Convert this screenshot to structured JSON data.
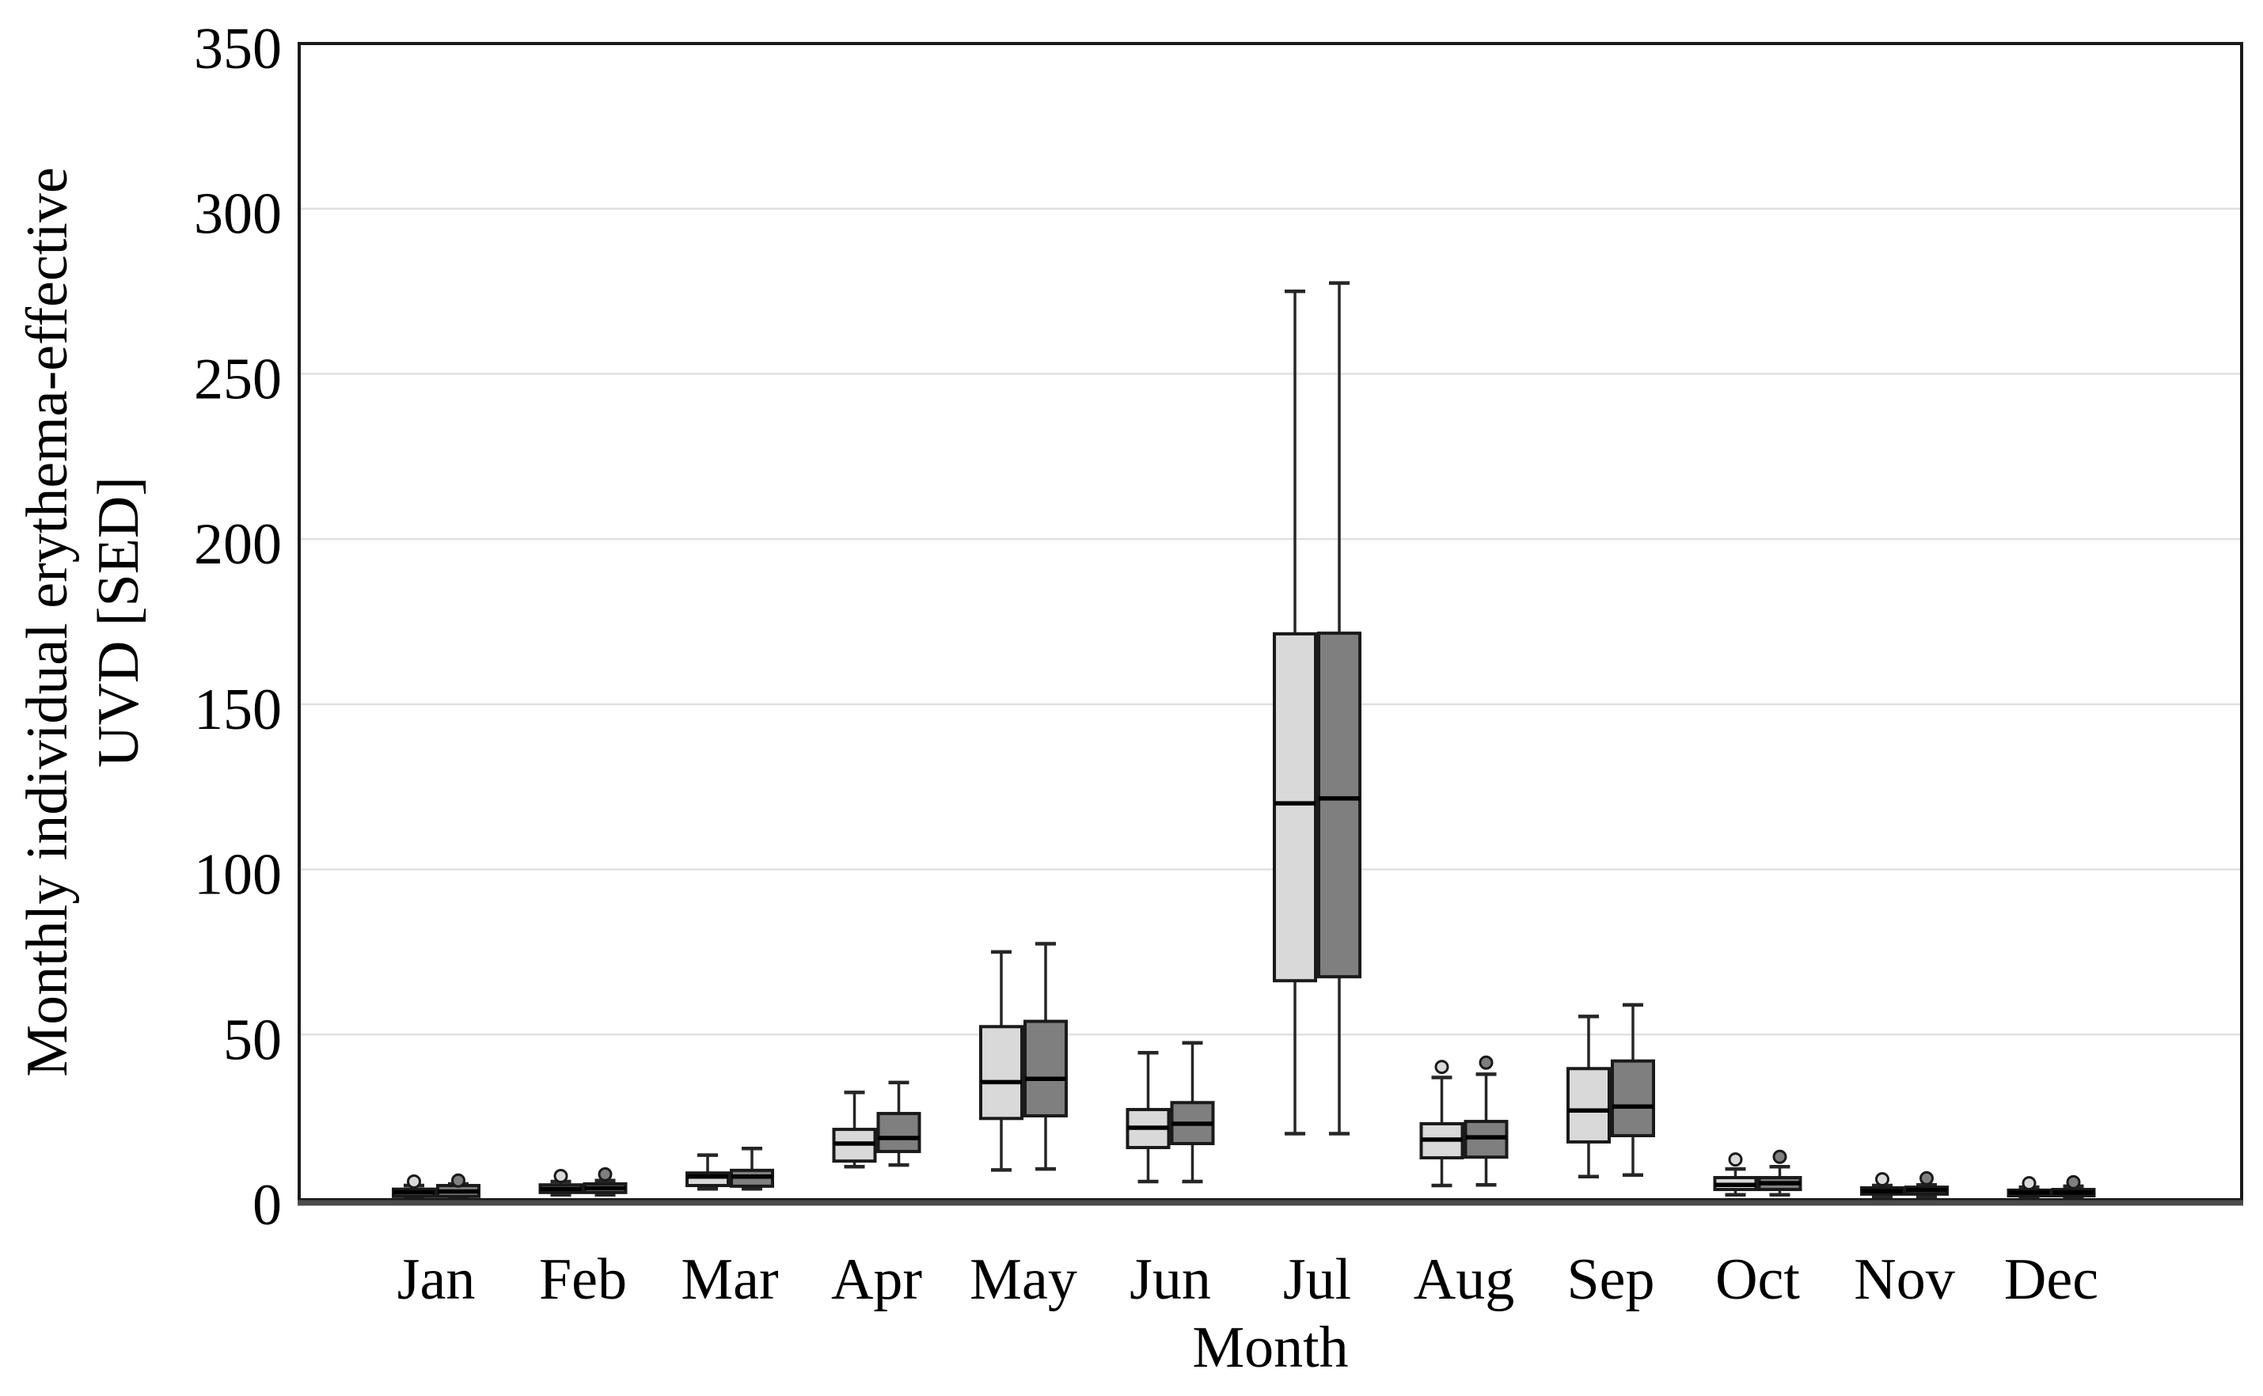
{
  "figure": {
    "background": "#ffffff",
    "description": "Grouped box-and-whisker plot, two unlabeled series per month (light grey and dark grey), no legend, no title"
  },
  "colors": {
    "light_series": "#d9d9d9",
    "dark_series": "#7f7f7f",
    "box_stroke": "#1a1a1a",
    "median_stroke": "#000000",
    "whisker_stroke": "#262626",
    "gridline": "#e0e0e0",
    "frame": "#1a1a1a",
    "x_axis_line": "#4a4a4a",
    "text": "#000000"
  },
  "chart_data": {
    "type": "boxplot",
    "title": "",
    "xlabel": "Month",
    "ylabel": "Monthly individual erythema-effective UVD [SED]",
    "ylabel_lines": [
      "Monthly individual erythema-effective",
      "UVD [SED]"
    ],
    "ylim": [
      0,
      350
    ],
    "y_ticks": [
      0,
      50,
      100,
      150,
      200,
      250,
      300,
      350
    ],
    "grid": "horizontal gridlines at every 50, framed plot area",
    "legend": "none",
    "categories": [
      "Jan",
      "Feb",
      "Mar",
      "Apr",
      "May",
      "Jun",
      "Jul",
      "Aug",
      "Sep",
      "Oct",
      "Nov",
      "Dec"
    ],
    "series": [
      {
        "id": "light",
        "name": "light-grey series",
        "color": "#d9d9d9",
        "boxes": [
          {
            "whislo": 0.5,
            "q1": 1.0,
            "med": 2.2,
            "q3": 3.2,
            "whishi": 4.3,
            "fliers": [
              5.5
            ]
          },
          {
            "whislo": 1.5,
            "q1": 2.2,
            "med": 3.3,
            "q3": 4.5,
            "whishi": 5.5,
            "fliers": [
              7.2
            ]
          },
          {
            "whislo": 3.3,
            "q1": 4.3,
            "med": 7.0,
            "q3": 8.1,
            "whishi": 13.5,
            "fliers": []
          },
          {
            "whislo": 10.0,
            "q1": 11.7,
            "med": 17.0,
            "q3": 21.3,
            "whishi": 32.5,
            "fliers": []
          },
          {
            "whislo": 9.0,
            "q1": 24.6,
            "med": 35.6,
            "q3": 52.4,
            "whishi": 75.0,
            "fliers": []
          },
          {
            "whislo": 5.5,
            "q1": 15.8,
            "med": 21.8,
            "q3": 27.3,
            "whishi": 44.5,
            "fliers": []
          },
          {
            "whislo": 20.0,
            "q1": 66.3,
            "med": 120.0,
            "q3": 171.3,
            "whishi": 275.0,
            "fliers": []
          },
          {
            "whislo": 4.3,
            "q1": 12.7,
            "med": 18.2,
            "q3": 23.0,
            "whishi": 37.0,
            "fliers": [
              40.2
            ]
          },
          {
            "whislo": 7.0,
            "q1": 17.5,
            "med": 27.0,
            "q3": 39.7,
            "whishi": 55.5,
            "fliers": []
          },
          {
            "whislo": 1.5,
            "q1": 3.1,
            "med": 4.5,
            "q3": 6.7,
            "whishi": 9.3,
            "fliers": [
              12.2
            ]
          },
          {
            "whislo": 1.0,
            "q1": 1.7,
            "med": 2.6,
            "q3": 3.6,
            "whishi": 4.3,
            "fliers": [
              6.2
            ]
          },
          {
            "whislo": 0.7,
            "q1": 1.2,
            "med": 2.2,
            "q3": 2.9,
            "whishi": 3.8,
            "fliers": [
              5.0
            ]
          }
        ]
      },
      {
        "id": "dark",
        "name": "dark-grey series",
        "color": "#7f7f7f",
        "boxes": [
          {
            "whislo": 0.7,
            "q1": 1.0,
            "med": 2.5,
            "q3": 4.3,
            "whishi": 4.8,
            "fliers": [
              5.8
            ]
          },
          {
            "whislo": 1.5,
            "q1": 2.2,
            "med": 3.5,
            "q3": 4.8,
            "whishi": 5.8,
            "fliers": [
              7.7
            ]
          },
          {
            "whislo": 3.3,
            "q1": 4.1,
            "med": 7.0,
            "q3": 8.9,
            "whishi": 15.5,
            "fliers": []
          },
          {
            "whislo": 10.5,
            "q1": 14.6,
            "med": 18.7,
            "q3": 26.1,
            "whishi": 35.5,
            "fliers": []
          },
          {
            "whislo": 9.3,
            "q1": 25.4,
            "med": 36.6,
            "q3": 54.0,
            "whishi": 77.5,
            "fliers": []
          },
          {
            "whislo": 5.5,
            "q1": 17.0,
            "med": 23.0,
            "q3": 29.4,
            "whishi": 47.5,
            "fliers": []
          },
          {
            "whislo": 20.0,
            "q1": 67.5,
            "med": 121.5,
            "q3": 171.5,
            "whishi": 277.5,
            "fliers": []
          },
          {
            "whislo": 4.5,
            "q1": 12.9,
            "med": 18.9,
            "q3": 23.7,
            "whishi": 38.0,
            "fliers": [
              41.5
            ]
          },
          {
            "whislo": 7.5,
            "q1": 19.4,
            "med": 28.2,
            "q3": 42.0,
            "whishi": 59.0,
            "fliers": []
          },
          {
            "whislo": 1.5,
            "q1": 3.1,
            "med": 5.0,
            "q3": 6.7,
            "whishi": 10.0,
            "fliers": [
              13.0
            ]
          },
          {
            "whislo": 1.0,
            "q1": 1.7,
            "med": 2.9,
            "q3": 3.8,
            "whishi": 4.5,
            "fliers": [
              6.5
            ]
          },
          {
            "whislo": 0.7,
            "q1": 1.2,
            "med": 2.2,
            "q3": 3.1,
            "whishi": 4.1,
            "fliers": [
              5.3
            ]
          }
        ]
      }
    ]
  }
}
